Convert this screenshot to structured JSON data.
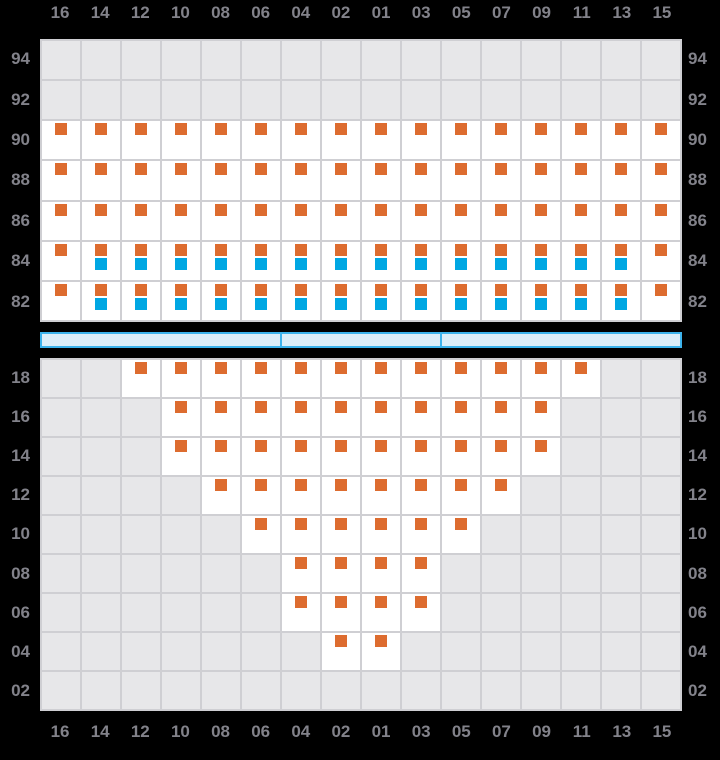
{
  "colors": {
    "background": "#000000",
    "grid_line": "#CFCFD3",
    "cell_empty": "#E7E7E9",
    "cell_filled": "#FFFFFF",
    "marker_orange": "#DD6C2F",
    "marker_blue": "#00A7E3",
    "bar_fill": "#DCEEF9",
    "bar_border": "#3DB3EC",
    "axis_label": "#82828A"
  },
  "chart_data": {
    "type": "heatmap",
    "columns": [
      "16",
      "14",
      "12",
      "10",
      "08",
      "06",
      "04",
      "02",
      "01",
      "03",
      "05",
      "07",
      "09",
      "11",
      "13",
      "15"
    ],
    "marker_legend": {
      "O": "orange square",
      "OB": "orange square above blue square",
      "": "empty gray cell"
    },
    "top_panel": {
      "row_labels": [
        "94",
        "92",
        "90",
        "88",
        "86",
        "84",
        "82"
      ],
      "rows": [
        {
          "label": "94",
          "cells": [
            "",
            "",
            "",
            "",
            "",
            "",
            "",
            "",
            "",
            "",
            "",
            "",
            "",
            "",
            "",
            ""
          ]
        },
        {
          "label": "92",
          "cells": [
            "",
            "",
            "",
            "",
            "",
            "",
            "",
            "",
            "",
            "",
            "",
            "",
            "",
            "",
            "",
            ""
          ]
        },
        {
          "label": "90",
          "cells": [
            "O",
            "O",
            "O",
            "O",
            "O",
            "O",
            "O",
            "O",
            "O",
            "O",
            "O",
            "O",
            "O",
            "O",
            "O",
            "O"
          ]
        },
        {
          "label": "88",
          "cells": [
            "O",
            "O",
            "O",
            "O",
            "O",
            "O",
            "O",
            "O",
            "O",
            "O",
            "O",
            "O",
            "O",
            "O",
            "O",
            "O"
          ]
        },
        {
          "label": "86",
          "cells": [
            "O",
            "O",
            "O",
            "O",
            "O",
            "O",
            "O",
            "O",
            "O",
            "O",
            "O",
            "O",
            "O",
            "O",
            "O",
            "O"
          ]
        },
        {
          "label": "84",
          "cells": [
            "O",
            "OB",
            "OB",
            "OB",
            "OB",
            "OB",
            "OB",
            "OB",
            "OB",
            "OB",
            "OB",
            "OB",
            "OB",
            "OB",
            "OB",
            "O"
          ]
        },
        {
          "label": "82",
          "cells": [
            "O",
            "OB",
            "OB",
            "OB",
            "OB",
            "OB",
            "OB",
            "OB",
            "OB",
            "OB",
            "OB",
            "OB",
            "OB",
            "OB",
            "OB",
            "O"
          ]
        }
      ]
    },
    "separator_bar": {
      "segments_in_columns": [
        6,
        4,
        6
      ]
    },
    "bottom_panel": {
      "row_labels": [
        "18",
        "16",
        "14",
        "12",
        "10",
        "08",
        "06",
        "04",
        "02"
      ],
      "rows": [
        {
          "label": "18",
          "cells": [
            "",
            "",
            "O",
            "O",
            "O",
            "O",
            "O",
            "O",
            "O",
            "O",
            "O",
            "O",
            "O",
            "O",
            "",
            ""
          ]
        },
        {
          "label": "16",
          "cells": [
            "",
            "",
            "",
            "O",
            "O",
            "O",
            "O",
            "O",
            "O",
            "O",
            "O",
            "O",
            "O",
            "",
            "",
            ""
          ]
        },
        {
          "label": "14",
          "cells": [
            "",
            "",
            "",
            "O",
            "O",
            "O",
            "O",
            "O",
            "O",
            "O",
            "O",
            "O",
            "O",
            "",
            "",
            ""
          ]
        },
        {
          "label": "12",
          "cells": [
            "",
            "",
            "",
            "",
            "O",
            "O",
            "O",
            "O",
            "O",
            "O",
            "O",
            "O",
            "",
            "",
            "",
            ""
          ]
        },
        {
          "label": "10",
          "cells": [
            "",
            "",
            "",
            "",
            "",
            "O",
            "O",
            "O",
            "O",
            "O",
            "O",
            "",
            "",
            "",
            "",
            ""
          ]
        },
        {
          "label": "08",
          "cells": [
            "",
            "",
            "",
            "",
            "",
            "",
            "O",
            "O",
            "O",
            "O",
            "",
            "",
            "",
            "",
            "",
            ""
          ]
        },
        {
          "label": "06",
          "cells": [
            "",
            "",
            "",
            "",
            "",
            "",
            "O",
            "O",
            "O",
            "O",
            "",
            "",
            "",
            "",
            "",
            ""
          ]
        },
        {
          "label": "04",
          "cells": [
            "",
            "",
            "",
            "",
            "",
            "",
            "",
            "O",
            "O",
            "",
            "",
            "",
            "",
            "",
            "",
            ""
          ]
        },
        {
          "label": "02",
          "cells": [
            "",
            "",
            "",
            "",
            "",
            "",
            "",
            "",
            "",
            "",
            "",
            "",
            "",
            "",
            "",
            ""
          ]
        }
      ]
    }
  }
}
